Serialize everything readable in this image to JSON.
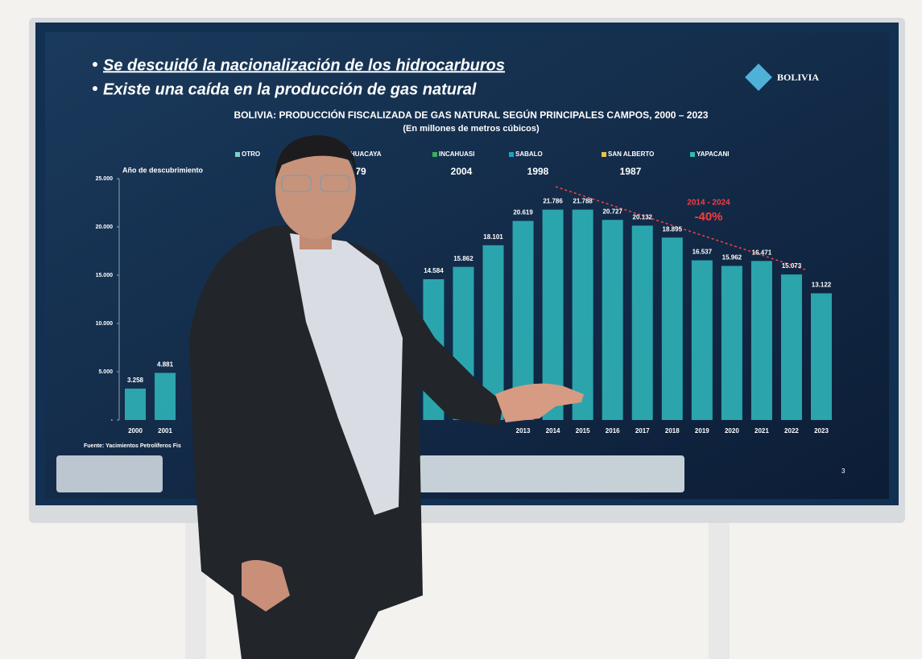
{
  "slide": {
    "bullets": [
      "Se descuidó la nacionalización de los hidrocarburos",
      "Existe una caída en la producción de gas natural"
    ],
    "logo": "BOLIVIA",
    "source": "Fuente: Yacimientos Petrolíferos Fis",
    "page_number": "3"
  },
  "chart_data": {
    "type": "bar",
    "title": "BOLIVIA: PRODUCCIÓN FISCALIZADA DE GAS NATURAL SEGÚN PRINCIPALES CAMPOS, 2000 – 2023",
    "subtitle": "(En millones de metros cúbicos)",
    "discovery_label": "Año de descubrimiento",
    "legend": [
      {
        "name": "OTRO",
        "color": "#7fcfc8"
      },
      {
        "name": "ITA-HUACAYA",
        "color": "#2aa9b5",
        "year": "79"
      },
      {
        "name": "INCAHUASI",
        "color": "#3cae5a",
        "year": "2004"
      },
      {
        "name": "SABALO",
        "color": "#19a3c0",
        "year": "1998"
      },
      {
        "name": "SAN ALBERTO",
        "color": "#e8c24a",
        "year": "1987"
      },
      {
        "name": "YAPACANI",
        "color": "#35b8b0"
      }
    ],
    "categories": [
      "2000",
      "2001",
      null,
      null,
      null,
      null,
      null,
      null,
      null,
      null,
      null,
      null,
      null,
      "2013",
      "2014",
      "2015",
      "2016",
      "2017",
      "2018",
      "2019",
      "2020",
      "2021",
      "2022",
      "2023"
    ],
    "values": [
      3258,
      4881,
      null,
      null,
      null,
      null,
      null,
      null,
      null,
      null,
      14584,
      15862,
      18101,
      20619,
      21786,
      21788,
      20727,
      20132,
      18895,
      16537,
      15962,
      16471,
      15073,
      13122
    ],
    "value_labels": [
      "3.258",
      "4.881",
      null,
      null,
      null,
      null,
      null,
      null,
      null,
      null,
      "14.584",
      "15.862",
      "18.101",
      "20.619",
      "21.786",
      "21.788",
      "20.727",
      "20.132",
      "18.895",
      "16.537",
      "15.962",
      "16.471",
      "15.073",
      "13.122"
    ],
    "color": "#2fb3b8",
    "ylim": [
      0,
      25000
    ],
    "yticks": [
      {
        "value": 0,
        "label": "-"
      },
      {
        "value": 5000,
        "label": "5.000"
      },
      {
        "value": 10000,
        "label": "10.000"
      },
      {
        "value": 15000,
        "label": "15.000"
      },
      {
        "value": 20000,
        "label": "20.000"
      },
      {
        "value": 25000,
        "label": "25.000"
      }
    ],
    "annotations": [
      "2014 - 2024",
      "-40%"
    ]
  }
}
